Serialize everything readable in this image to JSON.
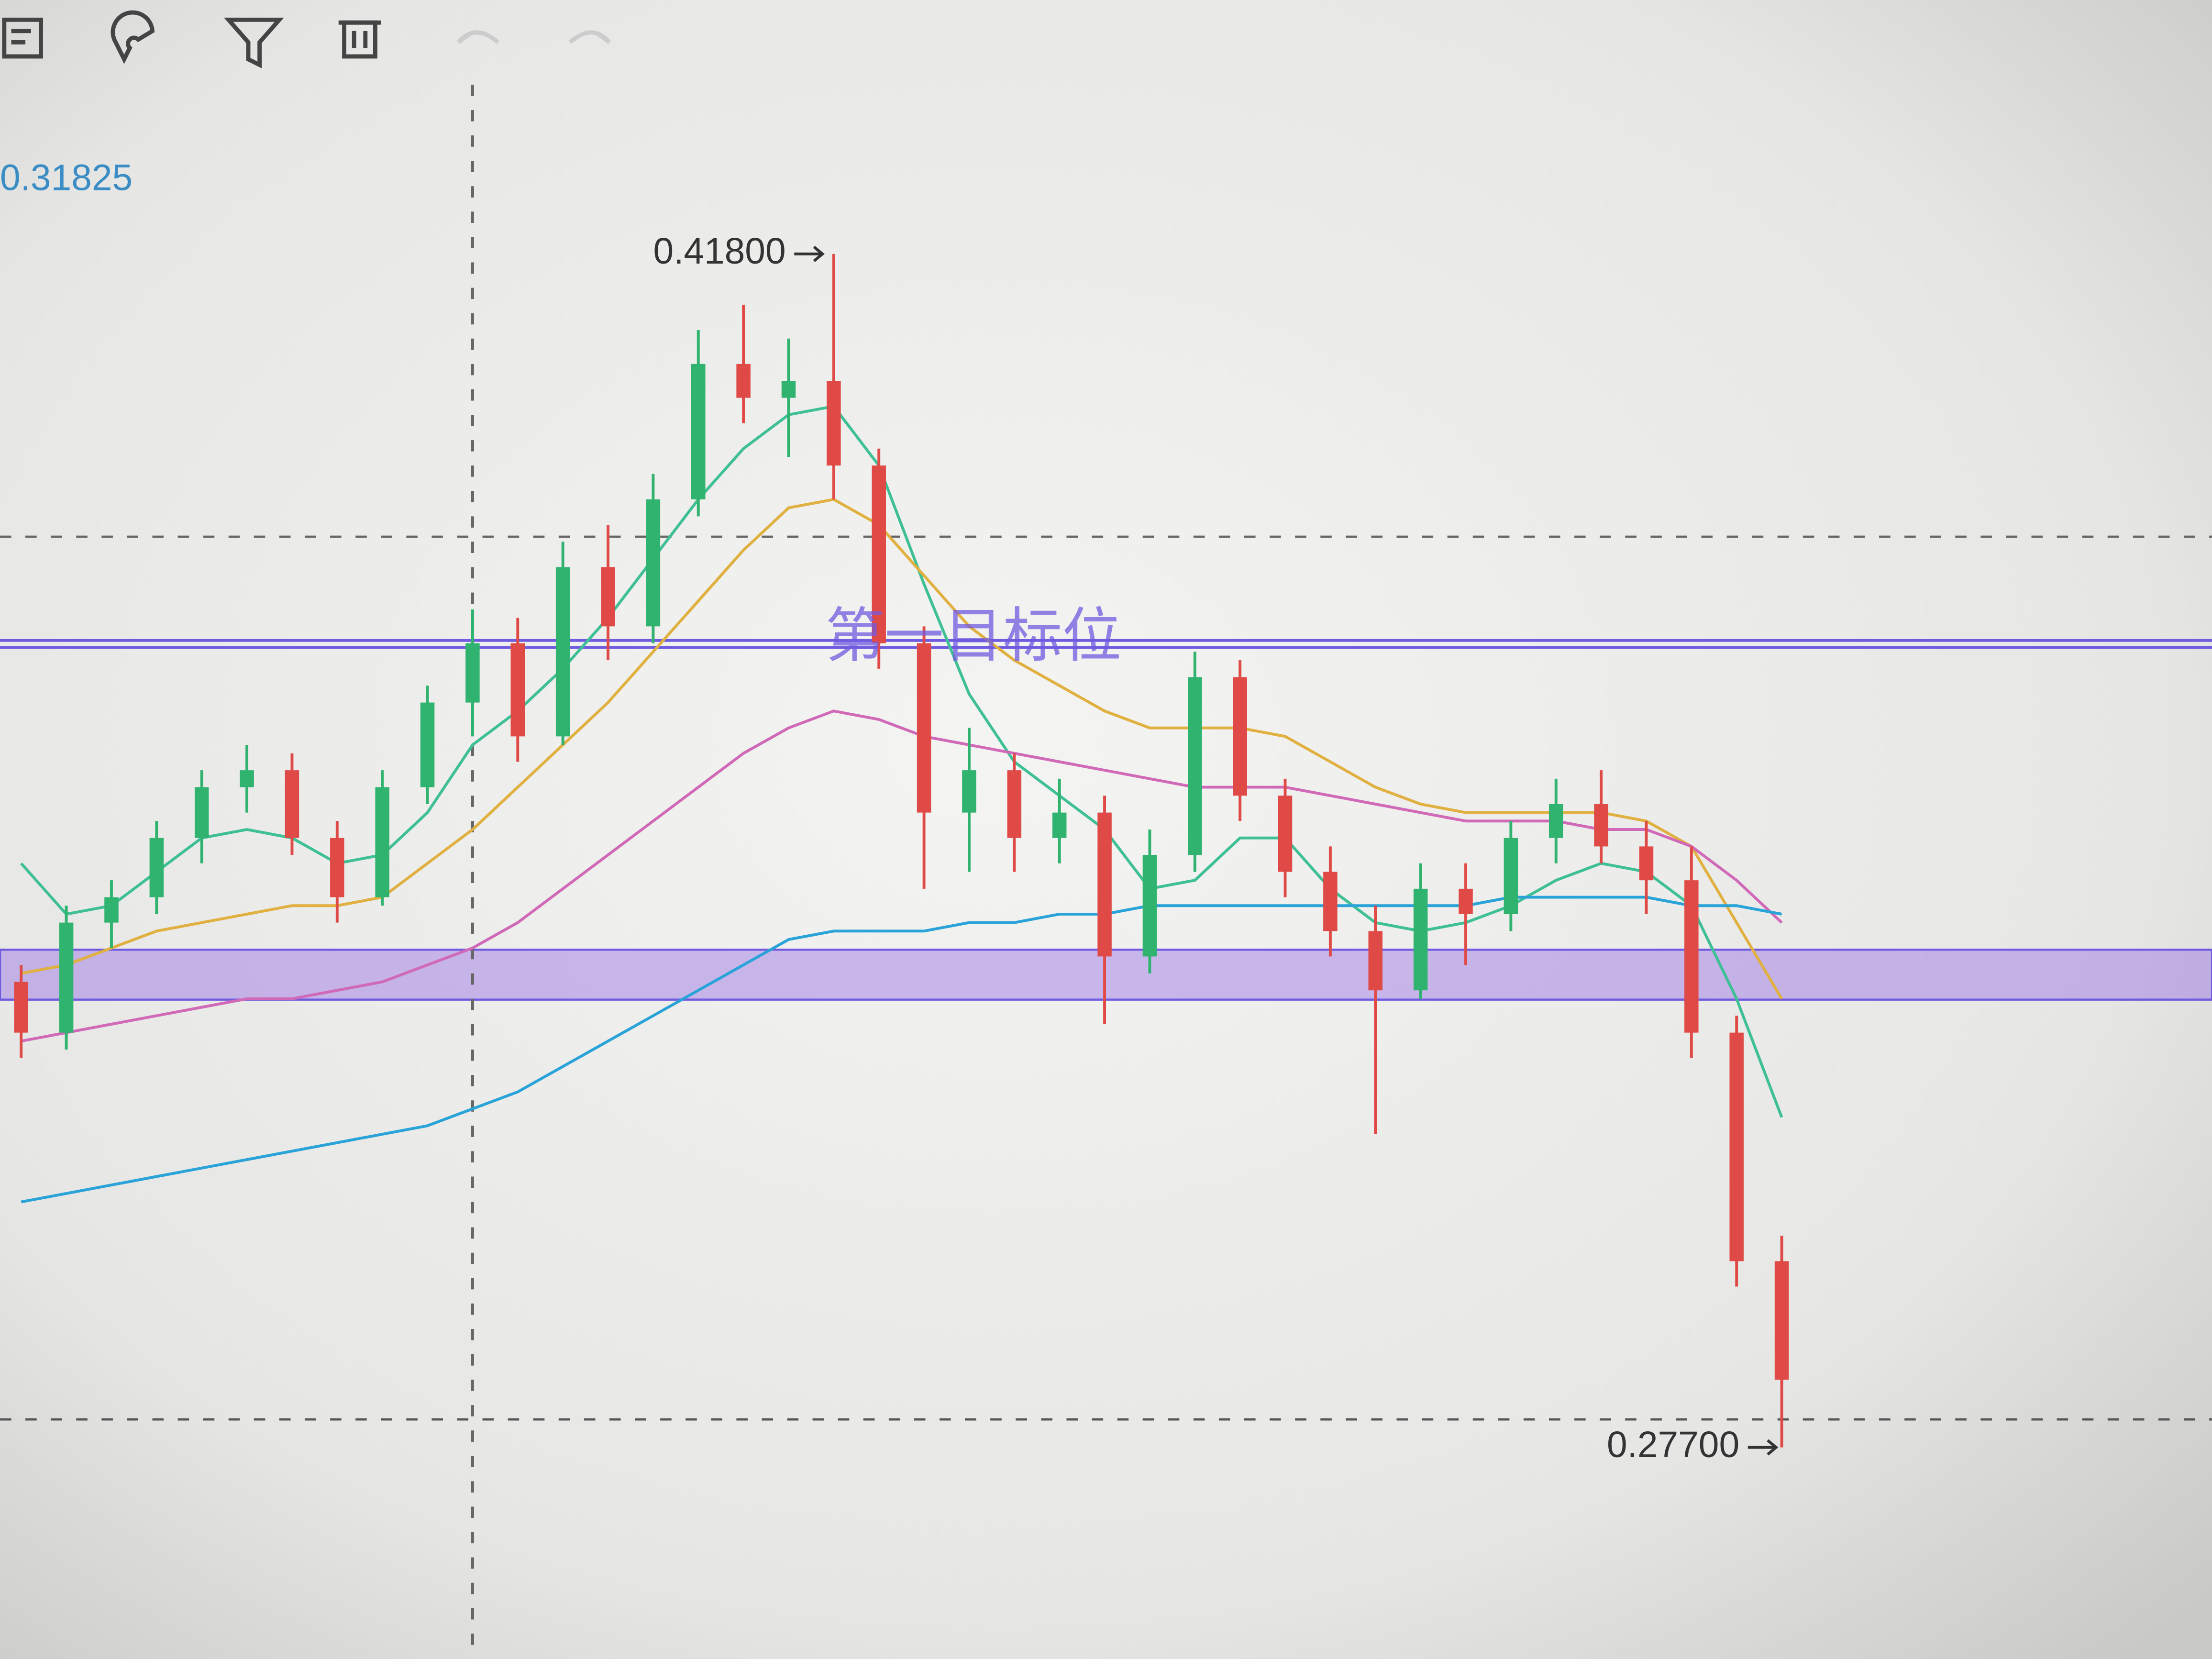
{
  "chart_data": {
    "type": "candlestick",
    "price_readout": "0.31825",
    "ylim": [
      0.252,
      0.448
    ],
    "up_color": "#2fb36f",
    "down_color": "#e04a46",
    "candles": {
      "open": [
        0.332,
        0.326,
        0.339,
        0.342,
        0.349,
        0.355,
        0.357,
        0.349,
        0.342,
        0.355,
        0.365,
        0.372,
        0.361,
        0.381,
        0.374,
        0.389,
        0.405,
        0.401,
        0.403,
        0.393,
        0.372,
        0.352,
        0.357,
        0.349,
        0.352,
        0.335,
        0.347,
        0.368,
        0.354,
        0.345,
        0.338,
        0.331,
        0.343,
        0.34,
        0.349,
        0.353,
        0.348,
        0.344,
        0.326,
        0.299
      ],
      "high": [
        0.334,
        0.341,
        0.344,
        0.351,
        0.357,
        0.36,
        0.359,
        0.351,
        0.357,
        0.367,
        0.376,
        0.375,
        0.384,
        0.386,
        0.392,
        0.409,
        0.412,
        0.408,
        0.418,
        0.395,
        0.374,
        0.362,
        0.359,
        0.356,
        0.354,
        0.35,
        0.371,
        0.37,
        0.356,
        0.348,
        0.341,
        0.346,
        0.346,
        0.351,
        0.356,
        0.357,
        0.351,
        0.348,
        0.328,
        0.302
      ],
      "low": [
        0.323,
        0.324,
        0.336,
        0.34,
        0.346,
        0.352,
        0.347,
        0.339,
        0.341,
        0.353,
        0.361,
        0.358,
        0.36,
        0.37,
        0.372,
        0.387,
        0.398,
        0.394,
        0.389,
        0.369,
        0.343,
        0.345,
        0.345,
        0.346,
        0.327,
        0.333,
        0.345,
        0.351,
        0.342,
        0.335,
        0.314,
        0.33,
        0.334,
        0.338,
        0.346,
        0.346,
        0.34,
        0.323,
        0.296,
        0.277
      ],
      "close": [
        0.326,
        0.339,
        0.342,
        0.349,
        0.355,
        0.357,
        0.349,
        0.342,
        0.355,
        0.365,
        0.372,
        0.361,
        0.381,
        0.374,
        0.389,
        0.405,
        0.401,
        0.403,
        0.393,
        0.372,
        0.352,
        0.357,
        0.349,
        0.352,
        0.335,
        0.347,
        0.368,
        0.354,
        0.345,
        0.338,
        0.331,
        0.343,
        0.34,
        0.349,
        0.353,
        0.348,
        0.344,
        0.326,
        0.299,
        0.285
      ]
    },
    "moving_averages": [
      {
        "color": "#3fbf95",
        "values": [
          0.346,
          0.34,
          0.341,
          0.345,
          0.349,
          0.35,
          0.349,
          0.346,
          0.347,
          0.352,
          0.36,
          0.364,
          0.369,
          0.375,
          0.382,
          0.389,
          0.395,
          0.399,
          0.4,
          0.393,
          0.379,
          0.366,
          0.358,
          0.354,
          0.35,
          0.343,
          0.344,
          0.349,
          0.349,
          0.343,
          0.339,
          0.338,
          0.339,
          0.341,
          0.344,
          0.346,
          0.345,
          0.341,
          0.33,
          0.316
        ]
      },
      {
        "color": "#e0b040",
        "values": [
          0.333,
          0.334,
          0.336,
          0.338,
          0.339,
          0.34,
          0.341,
          0.341,
          0.342,
          0.346,
          0.35,
          0.355,
          0.36,
          0.365,
          0.371,
          0.377,
          0.383,
          0.388,
          0.389,
          0.386,
          0.38,
          0.374,
          0.37,
          0.367,
          0.364,
          0.362,
          0.362,
          0.362,
          0.361,
          0.358,
          0.355,
          0.353,
          0.352,
          0.352,
          0.352,
          0.352,
          0.351,
          0.348,
          0.339,
          0.33
        ]
      },
      {
        "color": "#d06ab8",
        "values": [
          0.325,
          0.326,
          0.327,
          0.328,
          0.329,
          0.33,
          0.33,
          0.331,
          0.332,
          0.334,
          0.336,
          0.339,
          0.343,
          0.347,
          0.351,
          0.355,
          0.359,
          0.362,
          0.364,
          0.363,
          0.361,
          0.36,
          0.359,
          0.358,
          0.357,
          0.356,
          0.355,
          0.355,
          0.355,
          0.354,
          0.353,
          0.352,
          0.351,
          0.351,
          0.351,
          0.35,
          0.35,
          0.348,
          0.344,
          0.339
        ]
      },
      {
        "color": "#2aa3d8",
        "values": [
          0.306,
          0.307,
          0.308,
          0.309,
          0.31,
          0.311,
          0.312,
          0.313,
          0.314,
          0.315,
          0.317,
          0.319,
          0.322,
          0.325,
          0.328,
          0.331,
          0.334,
          0.337,
          0.338,
          0.338,
          0.338,
          0.339,
          0.339,
          0.34,
          0.34,
          0.341,
          0.341,
          0.341,
          0.341,
          0.341,
          0.341,
          0.341,
          0.341,
          0.342,
          0.342,
          0.342,
          0.342,
          0.341,
          0.341,
          0.34
        ]
      }
    ],
    "target_line": {
      "value": 0.372,
      "label": "第一目标位",
      "color": "#6f5ae0"
    },
    "support_band": [
      0.3299,
      0.3358
    ],
    "crosshair": {
      "index": 10,
      "price": 0.3846
    },
    "last_price_line": 0.2803,
    "high_label": "0.41800",
    "low_label": "0.27700"
  }
}
